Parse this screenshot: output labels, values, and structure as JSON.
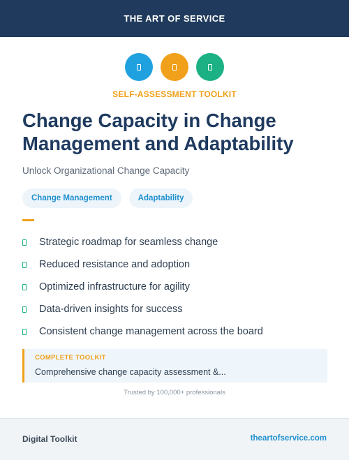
{
  "header": {
    "brand": "THE ART OF SERVICE"
  },
  "icons": [
    {
      "name": "icon-placeholder",
      "color": "#1fa1e0"
    },
    {
      "name": "icon-placeholder",
      "color": "#f0a01a"
    },
    {
      "name": "icon-placeholder",
      "color": "#1bb184"
    }
  ],
  "eyebrow": "SELF-ASSESSMENT TOOLKIT",
  "title": "Change Capacity in Change Management and Adaptability",
  "subtitle": "Unlock Organizational Change Capacity",
  "tags": [
    "Change Management",
    "Adaptability"
  ],
  "features": [
    "Strategic roadmap for seamless change",
    "Reduced resistance and adoption",
    "Optimized infrastructure for agility",
    "Data-driven insights for success",
    "Consistent change management across the board"
  ],
  "callout": {
    "label": "COMPLETE TOOLKIT",
    "text": "Comprehensive change capacity assessment &..."
  },
  "trusted": "Trusted by 100,000+ professionals",
  "footer": {
    "left": "Digital Toolkit",
    "right": "theartofservice.com"
  },
  "colors": {
    "navy": "#1f3a5c",
    "orange": "#f0a01a",
    "blue": "#1fa1e0",
    "green": "#1bb184"
  }
}
